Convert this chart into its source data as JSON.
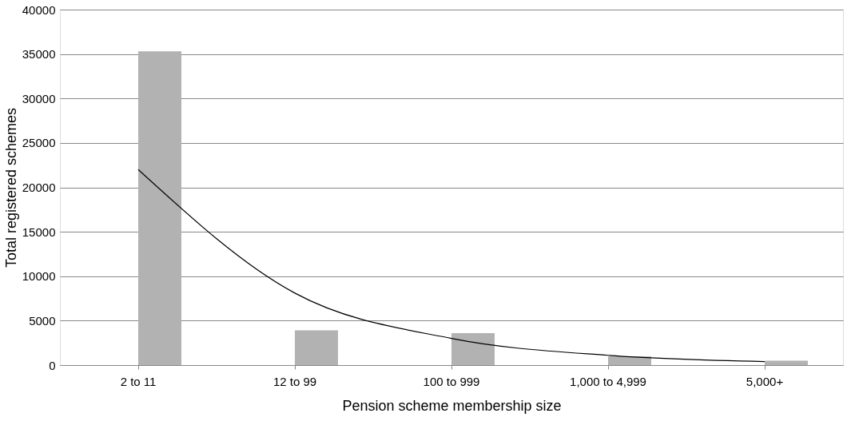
{
  "chart_data": {
    "type": "bar",
    "xlabel": "Pension scheme membership size",
    "ylabel": "Total registered schemes",
    "categories": [
      "2 to 11",
      "12 to 99",
      "100 to 999",
      "1,000 to 4,999",
      "5,000+"
    ],
    "series": [
      {
        "color": "#b2b2b2",
        "values": [
          35300,
          3900,
          3600,
          1000,
          500
        ]
      },
      {
        "type": "line",
        "color": "#000000",
        "values": [
          22000,
          8100,
          3000,
          1100,
          400
        ]
      }
    ],
    "ylim": [
      0,
      40000
    ],
    "yticks": [
      0,
      5000,
      10000,
      15000,
      20000,
      25000,
      30000,
      35000,
      40000
    ],
    "grid": "y"
  }
}
